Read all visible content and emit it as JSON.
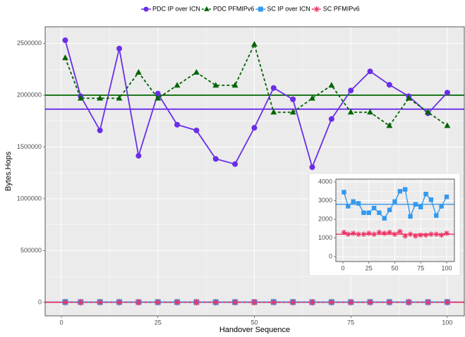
{
  "chart_data": [
    {
      "type": "line",
      "xlabel": "Handover Sequence",
      "ylabel": "Bytes.Hops",
      "x": [
        1,
        5,
        10,
        15,
        20,
        25,
        30,
        35,
        40,
        45,
        50,
        55,
        60,
        65,
        70,
        75,
        80,
        85,
        90,
        95,
        100
      ],
      "xlim": [
        -4.2,
        104.4
      ],
      "xticks": [
        0,
        25,
        50,
        75,
        100
      ],
      "ylim": [
        -130000,
        2660000
      ],
      "yticks": [
        0,
        500000,
        1000000,
        1500000,
        2000000,
        2500000
      ],
      "grid": true,
      "legend": "top",
      "series": [
        {
          "name": "PDC IP over ICN",
          "color": "#6a2ee8",
          "marker": "circle",
          "dash": false,
          "mean": 1865000,
          "values": [
            2530000,
            1990000,
            1660000,
            2450000,
            1415000,
            2015000,
            1715000,
            1660000,
            1385000,
            1335000,
            1685000,
            2070000,
            1960000,
            1305000,
            1770000,
            2045000,
            2230000,
            2100000,
            1990000,
            1825000,
            2025000
          ]
        },
        {
          "name": "PDC PFMIPv6",
          "color": "#006400",
          "marker": "triangle",
          "dash": true,
          "mean": 2000000,
          "values": [
            2360000,
            1970000,
            1970000,
            1970000,
            2220000,
            1970000,
            2095000,
            2220000,
            2095000,
            2095000,
            2490000,
            1835000,
            1835000,
            1970000,
            2095000,
            1835000,
            1835000,
            1705000,
            1970000,
            1835000,
            1705000
          ]
        },
        {
          "name": "SC IP over ICN",
          "color": "#3399ee",
          "marker": "square",
          "dash": false,
          "mean": 2800,
          "values": [
            3450,
            2700,
            2950,
            2850,
            2350,
            2350,
            2600,
            2350,
            2050,
            2500,
            2950,
            3500,
            3600,
            2150,
            2800,
            2650,
            3350,
            3050,
            2200,
            2700,
            3200
          ]
        },
        {
          "name": "SC PFMIPv6",
          "color": "#ee3366",
          "marker": "asterisk",
          "dash": true,
          "mean": 1200,
          "values": [
            1300,
            1200,
            1250,
            1200,
            1200,
            1250,
            1200,
            1300,
            1250,
            1300,
            1200,
            1350,
            1100,
            1200,
            1100,
            1150,
            1150,
            1200,
            1200,
            1150,
            1250
          ]
        }
      ]
    },
    {
      "type": "line",
      "x": [
        1,
        5,
        10,
        15,
        20,
        25,
        30,
        35,
        40,
        45,
        50,
        55,
        60,
        65,
        70,
        75,
        80,
        85,
        90,
        95,
        100
      ],
      "xlim": [
        -6.8,
        107.5
      ],
      "xticks": [
        0,
        25,
        50,
        75,
        100
      ],
      "ylim": [
        -264,
        4151
      ],
      "yticks": [
        0,
        1000,
        2000,
        3000,
        4000
      ],
      "grid": true,
      "series": [
        {
          "color": "#3399ee",
          "marker": "square",
          "dash": false,
          "mean": 2800,
          "values": [
            3450,
            2700,
            2950,
            2850,
            2350,
            2350,
            2600,
            2350,
            2050,
            2500,
            2950,
            3500,
            3600,
            2150,
            2800,
            2650,
            3350,
            3050,
            2200,
            2700,
            3200
          ]
        },
        {
          "color": "#ee3366",
          "marker": "asterisk",
          "dash": true,
          "mean": 1200,
          "values": [
            1300,
            1200,
            1250,
            1200,
            1200,
            1250,
            1200,
            1300,
            1250,
            1300,
            1200,
            1350,
            1100,
            1200,
            1100,
            1150,
            1150,
            1200,
            1200,
            1150,
            1250
          ]
        }
      ]
    }
  ]
}
